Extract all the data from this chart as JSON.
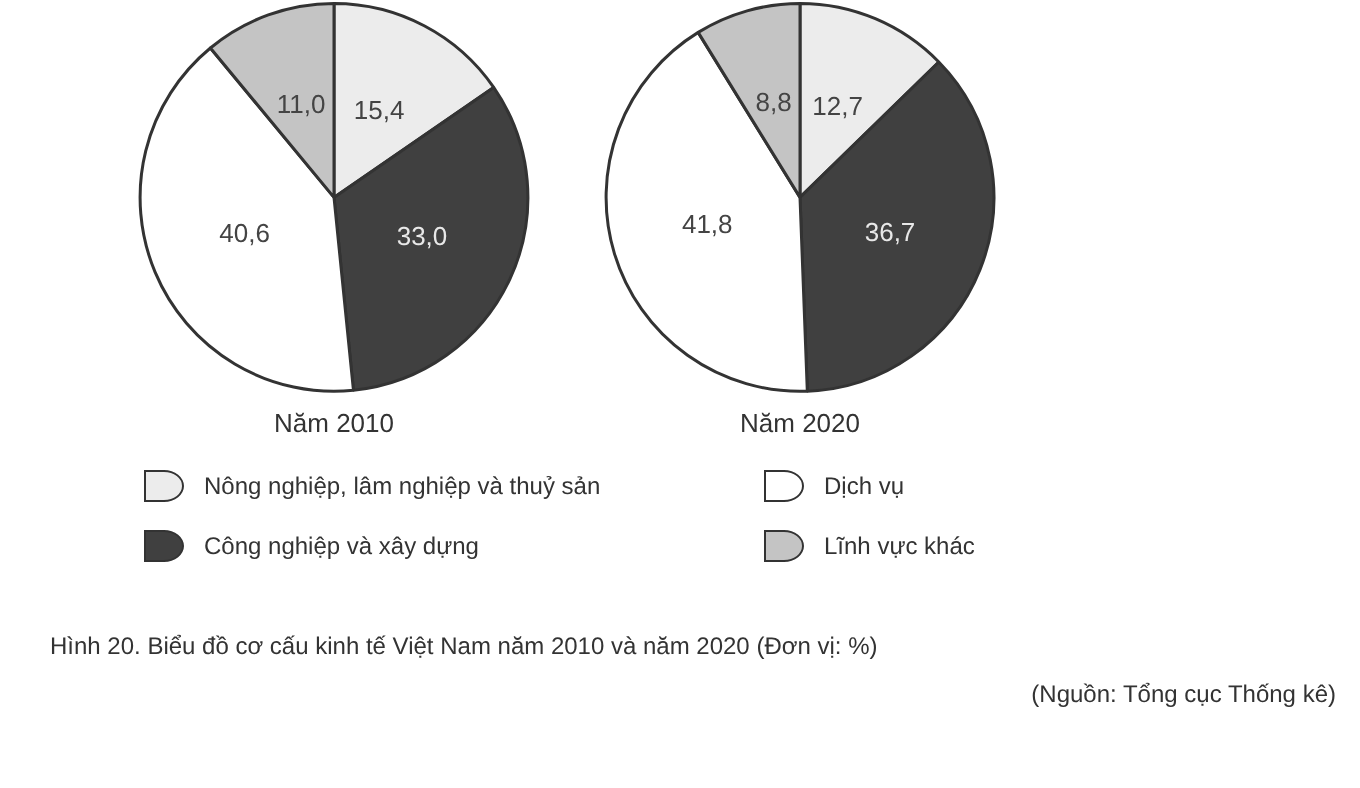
{
  "chart_data": [
    {
      "type": "pie",
      "title": "Năm 2010",
      "categories": [
        "Nông nghiệp, lâm nghiệp và thuỷ sản",
        "Công nghiệp và xây dựng",
        "Dịch vụ",
        "Lĩnh vực khác"
      ],
      "values": [
        15.4,
        33.0,
        40.6,
        11.0
      ],
      "value_labels": [
        "15,4",
        "33,0",
        "40,6",
        "11,0"
      ],
      "colors": [
        "#ececec",
        "#404040",
        "#ffffff",
        "#c4c4c4"
      ],
      "legend": "bottom",
      "annotations": [
        "Hình 20. Biểu đồ cơ cấu kinh tế Việt Nam năm 2010 và năm 2020 (Đơn vị: %)",
        "(Nguồn: Tổng cục Thống kê)"
      ]
    },
    {
      "type": "pie",
      "title": "Năm 2020",
      "categories": [
        null,
        null,
        null,
        null
      ],
      "values": [
        12.7,
        36.7,
        41.8,
        8.8
      ],
      "value_labels": [
        "12,7",
        "36,7",
        "41,8",
        "8,8"
      ],
      "colors": [
        "#ececec",
        "#404040",
        "#ffffff",
        "#c4c4c4"
      ]
    }
  ]
}
